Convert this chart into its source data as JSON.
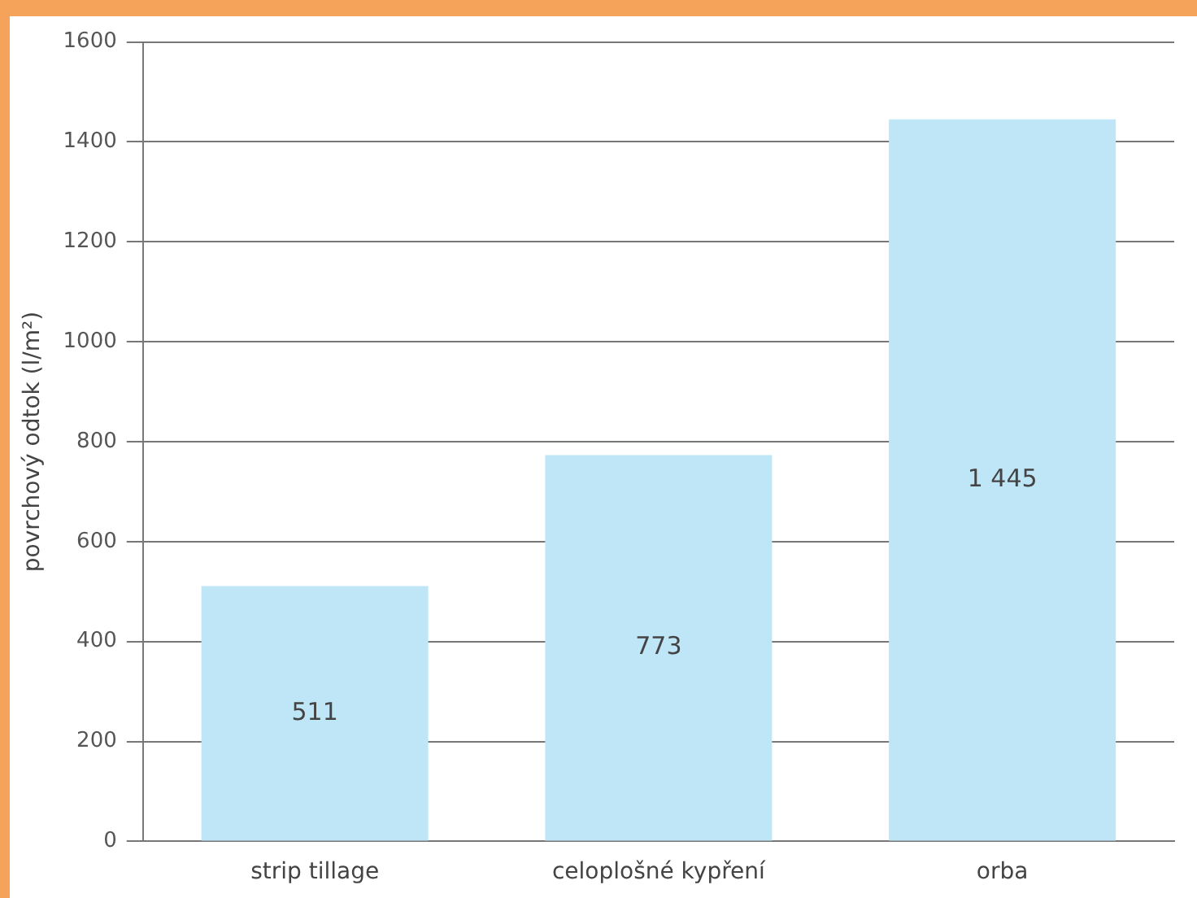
{
  "chart_data": {
    "type": "bar",
    "ylabel": "povrchový odtok (l/m²)",
    "categories": [
      "strip tillage",
      "celoplošné kypření",
      "orba"
    ],
    "values": [
      511,
      773,
      1445
    ],
    "value_labels": [
      "511",
      "773",
      "1 445"
    ],
    "color": "#bfe6f7",
    "ylim": [
      0,
      1600
    ],
    "yticks": [
      0,
      200,
      400,
      600,
      800,
      1000,
      1200,
      1400,
      1600
    ],
    "grid": "y"
  }
}
